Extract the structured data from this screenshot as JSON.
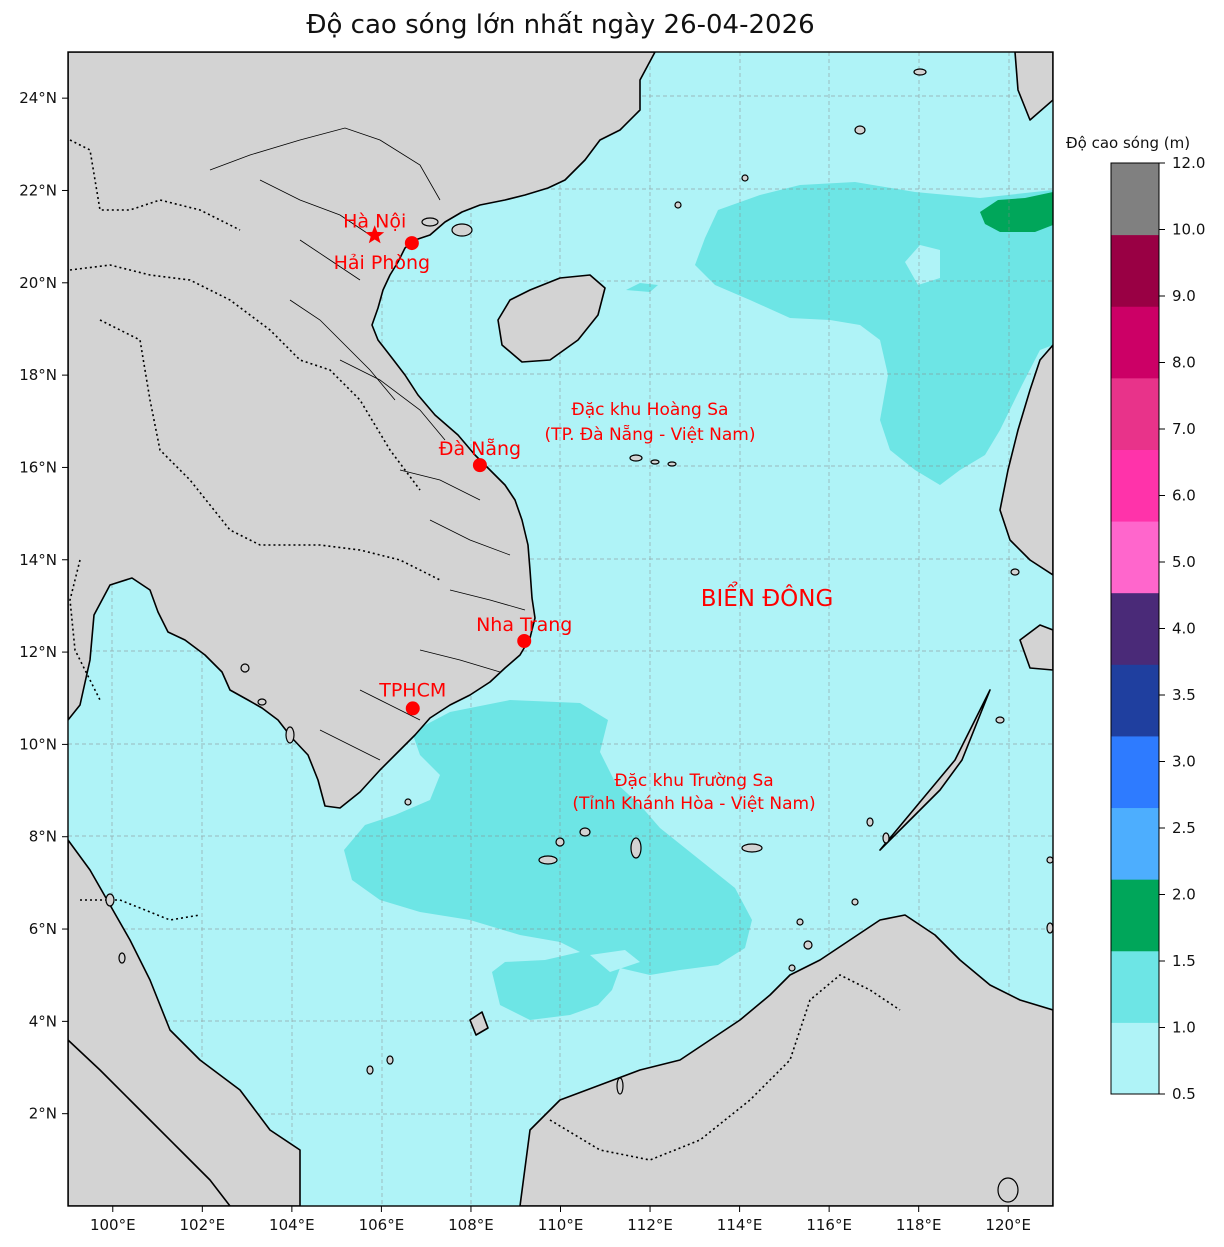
{
  "title": "Độ cao sóng lớn nhất ngày 26-04-2026",
  "colorbar": {
    "title": "Độ cao sóng (m)",
    "ticks": [
      "0.5",
      "1.0",
      "1.5",
      "2.0",
      "2.5",
      "3.0",
      "3.5",
      "4.0",
      "5.0",
      "6.0",
      "7.0",
      "8.0",
      "9.0",
      "10.0",
      "12.0"
    ],
    "colors": [
      "#aff3f7",
      "#6de5e5",
      "#00a65a",
      "#4daefe",
      "#2e7bff",
      "#1f3f9f",
      "#4a2a78",
      "#ff66cc",
      "#ff33aa",
      "#e8338a",
      "#cc0066",
      "#990044",
      "#808080"
    ]
  },
  "map": {
    "lon_labels": [
      "100°E",
      "102°E",
      "104°E",
      "106°E",
      "108°E",
      "110°E",
      "112°E",
      "114°E",
      "116°E",
      "118°E",
      "120°E"
    ],
    "lat_labels": [
      "2°N",
      "4°N",
      "6°N",
      "8°N",
      "10°N",
      "12°N",
      "14°N",
      "16°N",
      "18°N",
      "20°N",
      "22°N",
      "24°N"
    ],
    "land_color": "#d3d3d3",
    "sea_color": "#aff3f7",
    "wave_band_color": "#6de5e5",
    "high_wave_color": "#00a65a",
    "city_color": "#ff0000",
    "cities": [
      {
        "name": "Hà Nội",
        "lon": 105.85,
        "lat": 21.03,
        "marker": "star"
      },
      {
        "name": "Hải Phòng",
        "lon": 106.68,
        "lat": 20.86,
        "marker": "dot"
      },
      {
        "name": "Đà Nẵng",
        "lon": 108.2,
        "lat": 16.05,
        "marker": "dot"
      },
      {
        "name": "Nha Trang",
        "lon": 109.19,
        "lat": 12.24,
        "marker": "dot"
      },
      {
        "name": "TPHCM",
        "lon": 106.7,
        "lat": 10.78,
        "marker": "dot"
      }
    ],
    "annotations": [
      {
        "lines": [
          "Đặc khu Hoàng Sa",
          "(TP. Đà Nẵng - Việt Nam)"
        ]
      },
      {
        "lines": [
          "BIỂN ĐÔNG"
        ]
      },
      {
        "lines": [
          "Đặc khu Trường Sa",
          "(Tỉnh Khánh Hòa - Việt Nam)"
        ]
      }
    ]
  }
}
